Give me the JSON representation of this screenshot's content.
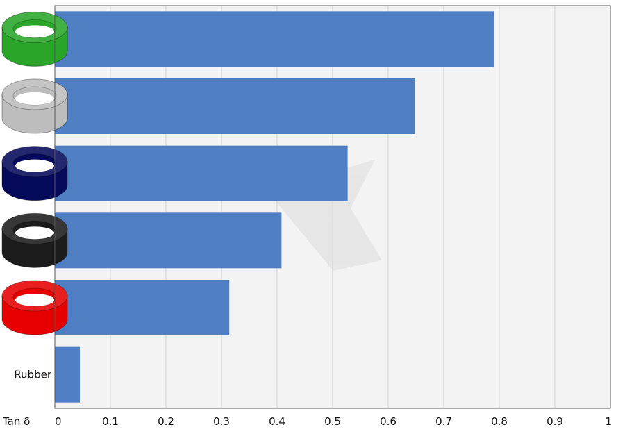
{
  "chart_data": {
    "type": "bar",
    "orientation": "horizontal",
    "xlabel": "Tan δ",
    "xlim": [
      0,
      1
    ],
    "xticks": [
      "0",
      "0.1",
      "0.2",
      "0.3",
      "0.4",
      "0.5",
      "0.6",
      "0.7",
      "0.8",
      "0.9",
      "1"
    ],
    "categories": [
      {
        "label": "",
        "icon": "green-ring-icon",
        "ring_color": "#2aa52a",
        "value": 0.79
      },
      {
        "label": "",
        "icon": "gray-ring-icon",
        "ring_color": "#bdbdbd",
        "value": 0.648
      },
      {
        "label": "",
        "icon": "navy-ring-icon",
        "ring_color": "#050a5a",
        "value": 0.527
      },
      {
        "label": "",
        "icon": "black-ring-icon",
        "ring_color": "#1c1c1c",
        "value": 0.408
      },
      {
        "label": "",
        "icon": "red-ring-icon",
        "ring_color": "#e60000",
        "value": 0.314
      },
      {
        "label": "Rubber",
        "icon": "",
        "ring_color": "",
        "value": 0.045
      }
    ],
    "bar_color": "#4f7fc2",
    "plot_background": "#f3f3f3",
    "grid": true,
    "legend": "none"
  }
}
